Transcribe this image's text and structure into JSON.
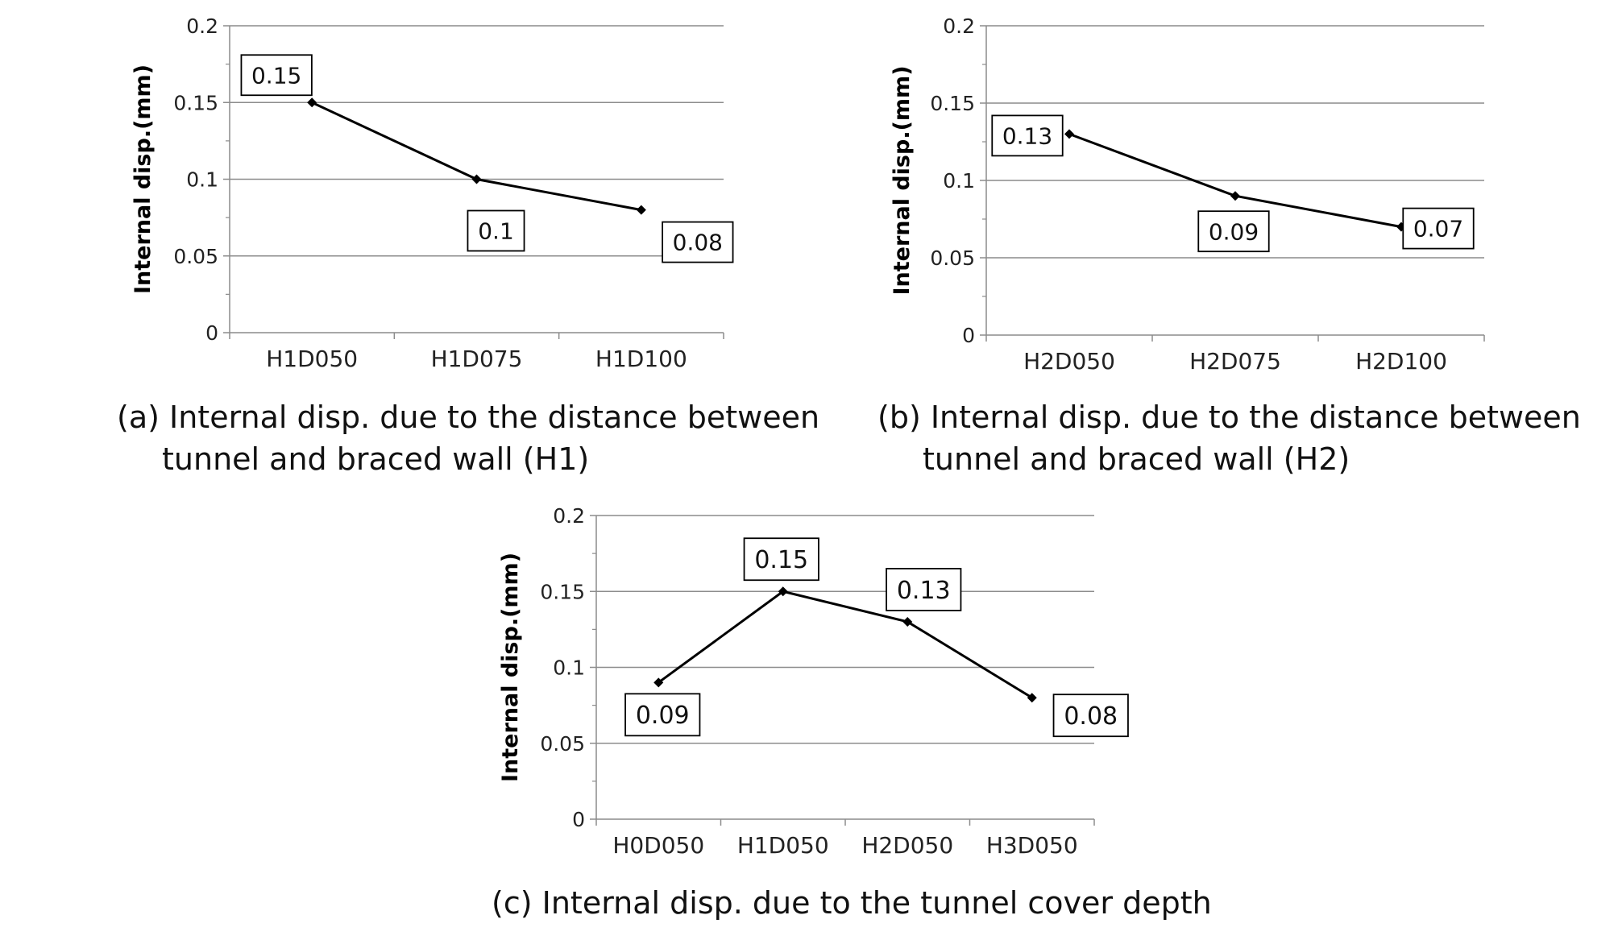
{
  "chart_data": [
    {
      "type": "line",
      "categories": [
        "H1D050",
        "H1D075",
        "H1D100"
      ],
      "series": [
        {
          "values": [
            0.15,
            0.1,
            0.08
          ]
        }
      ],
      "data_labels": [
        "0.15",
        "0.1",
        "0.08"
      ],
      "ylabel": "Internal disp.(mm)",
      "ylim": [
        0,
        0.2
      ],
      "yticks": [
        "0",
        "0.05",
        "0.1",
        "0.15",
        "0.2"
      ],
      "grid": true,
      "caption": [
        "(a) Internal disp. due to the distance between",
        "tunnel and braced wall (H1)"
      ]
    },
    {
      "type": "line",
      "categories": [
        "H2D050",
        "H2D075",
        "H2D100"
      ],
      "series": [
        {
          "values": [
            0.13,
            0.09,
            0.07
          ]
        }
      ],
      "data_labels": [
        "0.13",
        "0.09",
        "0.07"
      ],
      "ylabel": "Internal disp.(mm)",
      "ylim": [
        0,
        0.2
      ],
      "yticks": [
        "0",
        "0.05",
        "0.1",
        "0.15",
        "0.2"
      ],
      "grid": true,
      "caption": [
        "(b) Internal disp. due to the distance between",
        "tunnel and braced wall (H2)"
      ]
    },
    {
      "type": "line",
      "categories": [
        "H0D050",
        "H1D050",
        "H2D050",
        "H3D050"
      ],
      "series": [
        {
          "values": [
            0.09,
            0.15,
            0.13,
            0.08
          ]
        }
      ],
      "data_labels": [
        "0.09",
        "0.15",
        "0.13",
        "0.08"
      ],
      "ylabel": "Internal disp.(mm)",
      "ylim": [
        0,
        0.2
      ],
      "yticks": [
        "0",
        "0.05",
        "0.1",
        "0.15",
        "0.2"
      ],
      "grid": true,
      "caption": [
        "(c) Internal disp. due to the tunnel cover depth"
      ]
    }
  ]
}
